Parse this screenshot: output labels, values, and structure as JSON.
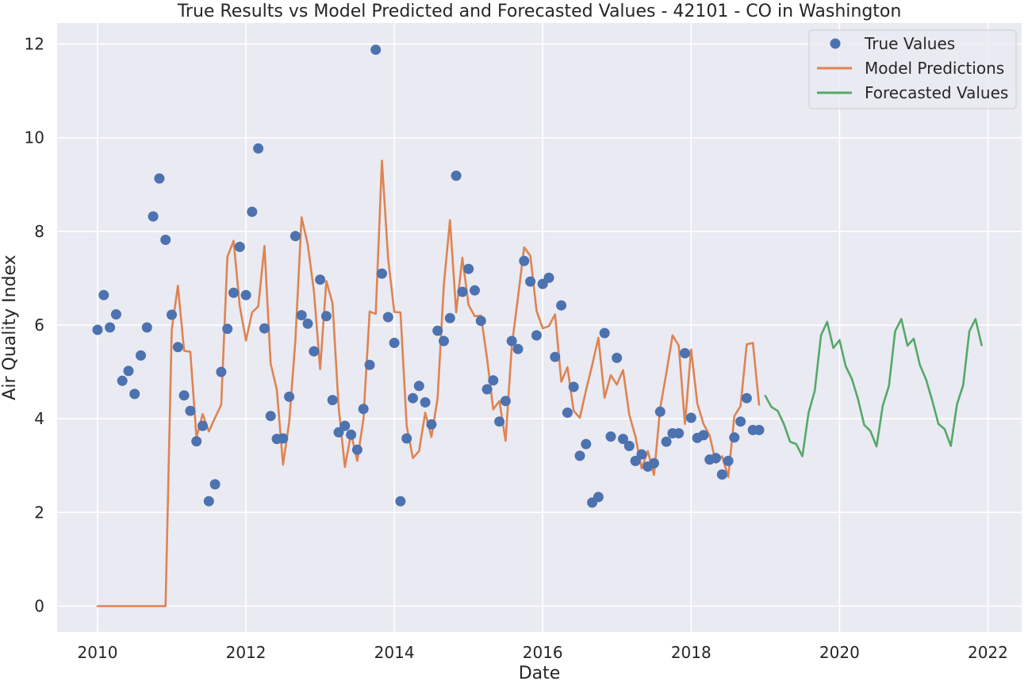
{
  "chart_data": {
    "type": "line",
    "title": "True Results vs Model Predicted and Forecasted Values - 42101 - CO in Washington",
    "xlabel": "Date",
    "ylabel": "Air Quality Index",
    "xlim": [
      "2009-06-15",
      "2022-06-15"
    ],
    "ylim": [
      -0.55,
      12.45
    ],
    "x_ticks": [
      "2010",
      "2012",
      "2014",
      "2016",
      "2018",
      "2020",
      "2022"
    ],
    "y_ticks": [
      "0",
      "2",
      "4",
      "6",
      "8",
      "10",
      "12"
    ],
    "grid": true,
    "legend_position": "top-right",
    "colors": {
      "background": "#EAEAF2",
      "grid": "#FFFFFF"
    },
    "series": [
      {
        "name": "True Values",
        "kind": "scatter",
        "color": "#4C72B0",
        "start": "2010-01",
        "values": [
          5.9,
          6.64,
          5.95,
          6.23,
          4.81,
          5.02,
          4.53,
          5.35,
          5.95,
          8.32,
          9.13,
          7.82,
          6.22,
          5.53,
          4.5,
          4.17,
          3.52,
          3.85,
          2.24,
          2.6,
          5.0,
          5.92,
          6.69,
          7.67,
          6.64,
          8.42,
          9.77,
          5.93,
          4.06,
          3.57,
          3.58,
          4.47,
          7.9,
          6.21,
          6.03,
          5.44,
          6.97,
          6.19,
          4.4,
          3.71,
          3.85,
          3.66,
          3.34,
          4.21,
          5.15,
          11.88,
          7.1,
          6.17,
          5.62,
          2.24,
          3.58,
          4.44,
          4.7,
          4.35,
          3.88,
          5.88,
          5.66,
          6.15,
          9.19,
          6.71,
          7.2,
          6.74,
          6.09,
          4.63,
          4.82,
          3.94,
          4.38,
          5.66,
          5.49,
          7.37,
          6.93,
          5.78,
          6.88,
          7.01,
          5.32,
          6.42,
          4.13,
          4.68,
          3.21,
          3.46,
          2.21,
          2.33,
          5.83,
          3.62,
          5.3,
          3.57,
          3.42,
          3.1,
          3.24,
          2.98,
          3.05,
          4.15,
          3.51,
          3.69,
          3.69,
          5.4,
          4.02,
          3.59,
          3.65,
          3.13,
          3.16,
          2.81,
          3.1,
          3.6,
          3.94,
          4.44,
          3.76,
          3.76
        ]
      },
      {
        "name": "Model Predictions",
        "kind": "line",
        "color": "#DD8452",
        "start": "2010-01",
        "values": [
          0,
          0,
          0,
          0,
          0,
          0,
          0,
          0,
          0,
          0,
          0,
          0,
          5.9,
          6.84,
          5.45,
          5.43,
          3.6,
          4.1,
          3.73,
          4.02,
          4.3,
          7.46,
          7.8,
          6.4,
          5.67,
          6.27,
          6.4,
          7.69,
          5.18,
          4.62,
          3.02,
          3.93,
          5.68,
          8.3,
          7.72,
          6.72,
          5.06,
          6.94,
          6.47,
          4.23,
          2.97,
          3.69,
          3.1,
          4.0,
          6.29,
          6.24,
          9.51,
          7.42,
          6.28,
          6.27,
          3.85,
          3.16,
          3.31,
          4.13,
          3.61,
          4.44,
          6.85,
          8.24,
          6.27,
          7.44,
          6.43,
          6.19,
          6.2,
          5.28,
          4.2,
          4.38,
          3.53,
          5.55,
          6.59,
          7.66,
          7.48,
          6.31,
          5.93,
          5.98,
          6.23,
          4.79,
          5.1,
          4.17,
          4.02,
          4.61,
          5.15,
          5.73,
          4.45,
          4.93,
          4.73,
          5.04,
          4.09,
          3.62,
          2.94,
          3.31,
          2.8,
          4.23,
          4.98,
          5.78,
          5.56,
          3.89,
          5.48,
          4.33,
          3.89,
          3.64,
          3.06,
          3.2,
          2.76,
          4.06,
          4.27,
          5.59,
          5.62,
          4.3
        ]
      },
      {
        "name": "Forecasted Values",
        "kind": "line",
        "color": "#55A868",
        "start": "2019-01",
        "values": [
          4.49,
          4.25,
          4.17,
          3.89,
          3.51,
          3.46,
          3.2,
          4.13,
          4.6,
          5.78,
          6.07,
          5.51,
          5.68,
          5.12,
          4.85,
          4.42,
          3.87,
          3.74,
          3.41,
          4.28,
          4.7,
          5.87,
          6.13,
          5.56,
          5.71,
          5.15,
          4.84,
          4.39,
          3.89,
          3.78,
          3.42,
          4.31,
          4.72,
          5.87,
          6.13,
          5.57
        ]
      }
    ]
  }
}
